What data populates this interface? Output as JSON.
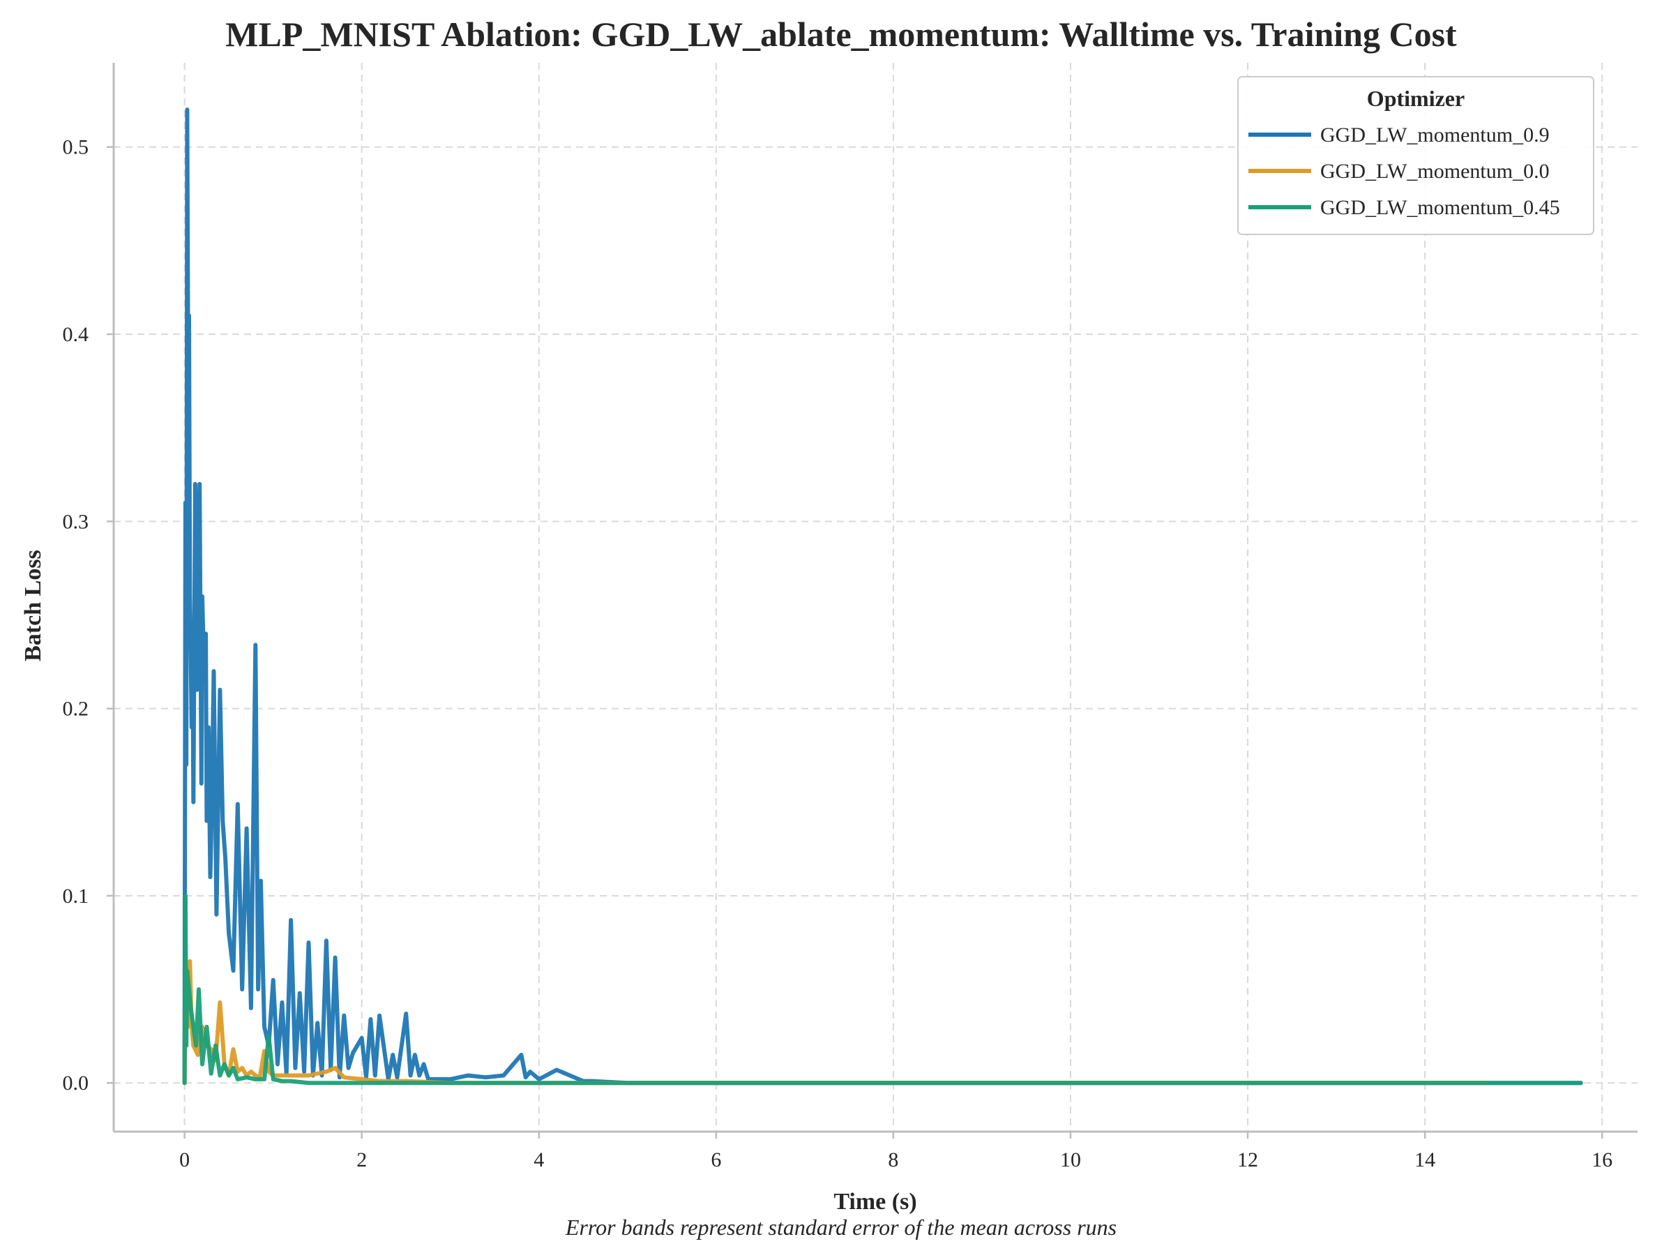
{
  "chart_data": {
    "type": "line",
    "title": "MLP_MNIST Ablation: GGD_LW_ablate_momentum: Walltime vs. Training Cost",
    "xlabel": "Time (s)",
    "ylabel": "Batch Loss",
    "caption": "Error bands represent standard error of the mean across runs",
    "xlim": [
      -0.8,
      16.4
    ],
    "ylim": [
      -0.026,
      0.545
    ],
    "xticks": [
      0,
      2,
      4,
      6,
      8,
      10,
      12,
      14,
      16
    ],
    "yticks": [
      0.0,
      0.1,
      0.2,
      0.3,
      0.4,
      0.5
    ],
    "xtick_labels": [
      "0",
      "2",
      "4",
      "6",
      "8",
      "10",
      "12",
      "14",
      "16"
    ],
    "ytick_labels": [
      "0.0",
      "0.1",
      "0.2",
      "0.3",
      "0.4",
      "0.5"
    ],
    "grid": true,
    "legend": {
      "title": "Optimizer",
      "position": "top-right"
    },
    "series": [
      {
        "name": "GGD_LW_momentum_0.9",
        "color": "#1f77b4",
        "x": [
          0.0,
          0.01,
          0.02,
          0.03,
          0.04,
          0.05,
          0.06,
          0.07,
          0.08,
          0.09,
          0.1,
          0.12,
          0.14,
          0.15,
          0.17,
          0.19,
          0.2,
          0.22,
          0.24,
          0.25,
          0.27,
          0.29,
          0.3,
          0.33,
          0.36,
          0.4,
          0.43,
          0.46,
          0.5,
          0.55,
          0.6,
          0.65,
          0.7,
          0.75,
          0.8,
          0.83,
          0.86,
          0.9,
          0.95,
          1.0,
          1.05,
          1.1,
          1.15,
          1.2,
          1.25,
          1.3,
          1.35,
          1.4,
          1.45,
          1.5,
          1.55,
          1.6,
          1.65,
          1.7,
          1.75,
          1.8,
          1.85,
          1.9,
          2.0,
          2.05,
          2.1,
          2.15,
          2.2,
          2.3,
          2.35,
          2.4,
          2.5,
          2.55,
          2.6,
          2.65,
          2.7,
          2.75,
          2.8,
          3.0,
          3.2,
          3.4,
          3.6,
          3.8,
          3.85,
          3.9,
          4.0,
          4.2,
          4.5,
          4.6,
          5.0,
          6.0,
          8.0,
          10.0,
          12.0,
          14.0,
          15.76
        ],
        "y": [
          0.0,
          0.31,
          0.17,
          0.52,
          0.39,
          0.41,
          0.26,
          0.23,
          0.19,
          0.24,
          0.15,
          0.32,
          0.21,
          0.25,
          0.32,
          0.16,
          0.26,
          0.22,
          0.24,
          0.14,
          0.19,
          0.11,
          0.13,
          0.22,
          0.09,
          0.21,
          0.14,
          0.12,
          0.08,
          0.06,
          0.149,
          0.05,
          0.136,
          0.04,
          0.234,
          0.05,
          0.108,
          0.03,
          0.02,
          0.055,
          0.01,
          0.043,
          0.005,
          0.087,
          0.008,
          0.048,
          0.006,
          0.075,
          0.004,
          0.032,
          0.004,
          0.076,
          0.007,
          0.067,
          0.003,
          0.036,
          0.008,
          0.016,
          0.024,
          0.003,
          0.034,
          0.004,
          0.036,
          0.002,
          0.015,
          0.003,
          0.037,
          0.004,
          0.015,
          0.004,
          0.01,
          0.002,
          0.002,
          0.002,
          0.004,
          0.003,
          0.004,
          0.015,
          0.003,
          0.006,
          0.002,
          0.007,
          0.001,
          0.001,
          0.0,
          0.0,
          0.0,
          0.0,
          0.0,
          0.0,
          0.0
        ]
      },
      {
        "name": "GGD_LW_momentum_0.0",
        "color": "#de9b26",
        "x": [
          0.0,
          0.02,
          0.04,
          0.06,
          0.08,
          0.1,
          0.15,
          0.2,
          0.25,
          0.3,
          0.35,
          0.4,
          0.45,
          0.5,
          0.55,
          0.6,
          0.65,
          0.7,
          0.75,
          0.8,
          0.85,
          0.9,
          0.95,
          1.0,
          1.2,
          1.4,
          1.6,
          1.7,
          1.8,
          2.0,
          2.2,
          2.5,
          3.0,
          4.0,
          6.0,
          10.0,
          14.69
        ],
        "y": [
          0.0,
          0.06,
          0.03,
          0.065,
          0.03,
          0.02,
          0.015,
          0.03,
          0.02,
          0.018,
          0.012,
          0.043,
          0.01,
          0.004,
          0.018,
          0.006,
          0.008,
          0.004,
          0.006,
          0.004,
          0.003,
          0.017,
          0.006,
          0.004,
          0.004,
          0.004,
          0.006,
          0.008,
          0.003,
          0.002,
          0.001,
          0.001,
          0.0,
          0.0,
          0.0,
          0.0,
          0.0
        ]
      },
      {
        "name": "GGD_LW_momentum_0.45",
        "color": "#1aa078",
        "x": [
          0.0,
          0.01,
          0.02,
          0.03,
          0.05,
          0.07,
          0.1,
          0.13,
          0.16,
          0.2,
          0.25,
          0.3,
          0.35,
          0.4,
          0.45,
          0.5,
          0.55,
          0.6,
          0.7,
          0.8,
          0.9,
          0.95,
          1.0,
          1.1,
          1.2,
          1.4,
          1.6,
          2.0,
          3.0,
          5.0,
          8.0,
          12.0,
          15.76
        ],
        "y": [
          0.0,
          0.1,
          0.02,
          0.06,
          0.05,
          0.04,
          0.03,
          0.02,
          0.05,
          0.01,
          0.03,
          0.005,
          0.02,
          0.004,
          0.01,
          0.004,
          0.008,
          0.002,
          0.003,
          0.002,
          0.002,
          0.025,
          0.002,
          0.001,
          0.001,
          0.0,
          0.0,
          0.0,
          0.0,
          0.0,
          0.0,
          0.0,
          0.0
        ]
      }
    ]
  }
}
